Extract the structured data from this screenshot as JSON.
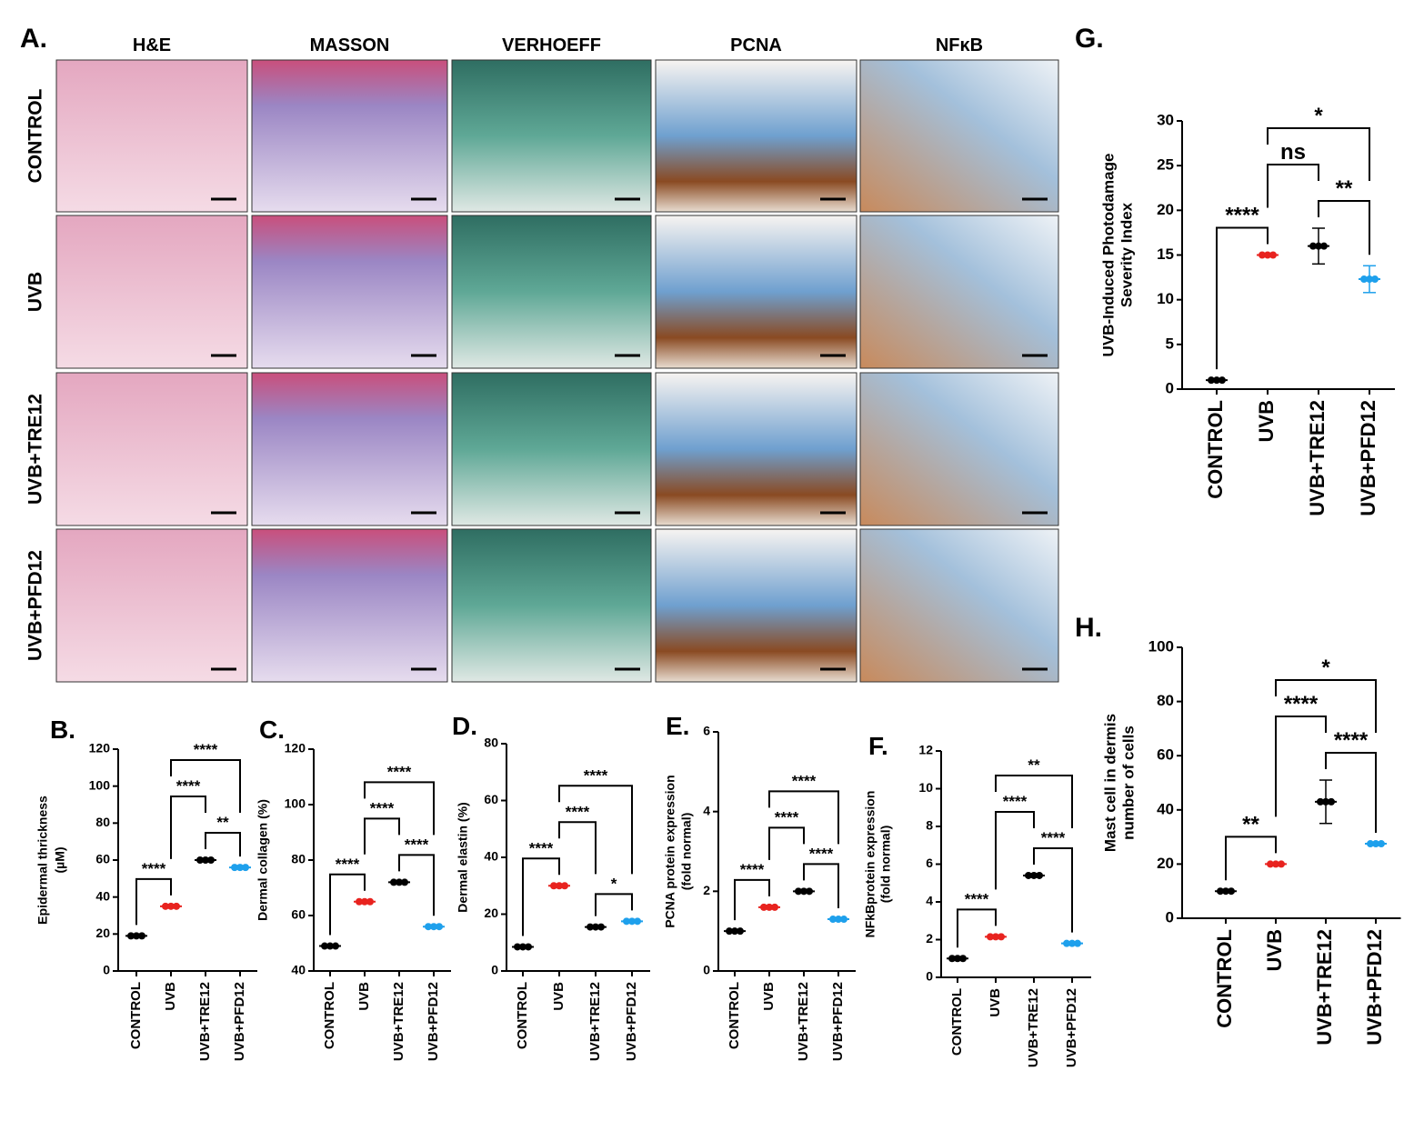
{
  "panel_a": {
    "label": "A.",
    "columns": [
      "H&E",
      "MASSON",
      "VERHOEFF",
      "PCNA",
      "NFκB"
    ],
    "rows": [
      "CONTROL",
      "UVB",
      "UVB+TRE12",
      "UVB+PFD12"
    ]
  },
  "chart_data": [
    {
      "type": "dot",
      "label": "B.",
      "ylabel": [
        "Epidermal thrickness",
        "(µM)"
      ],
      "categories": [
        "CONTROL",
        "UVB",
        "UVB+TRE12",
        "UVB+PFD12"
      ],
      "values": [
        19,
        35,
        60,
        56
      ],
      "colors": [
        "#000000",
        "#e8231f",
        "#000000",
        "#1ea0ec"
      ],
      "ylim": [
        0,
        120
      ],
      "yticks": [
        0,
        20,
        40,
        60,
        80,
        100,
        120
      ],
      "comparisons": [
        {
          "groups": [
            "CONTROL",
            "UVB"
          ],
          "label": "****"
        },
        {
          "groups": [
            "UVB+TRE12",
            "UVB+PFD12"
          ],
          "label": "**"
        },
        {
          "groups": [
            "UVB",
            "UVB+TRE12"
          ],
          "label": "****"
        },
        {
          "groups": [
            "UVB",
            "UVB+PFD12"
          ],
          "label": "****"
        }
      ]
    },
    {
      "type": "dot",
      "label": "C.",
      "ylabel": [
        "Dermal collagen  (%)"
      ],
      "categories": [
        "CONTROL",
        "UVB",
        "UVB+TRE12",
        "UVB+PFD12"
      ],
      "values": [
        49,
        65,
        72,
        56
      ],
      "colors": [
        "#000000",
        "#e8231f",
        "#000000",
        "#1ea0ec"
      ],
      "ylim": [
        40,
        120
      ],
      "yticks": [
        40,
        60,
        80,
        100,
        120
      ],
      "comparisons": [
        {
          "groups": [
            "CONTROL",
            "UVB"
          ],
          "label": "****"
        },
        {
          "groups": [
            "UVB+TRE12",
            "UVB+PFD12"
          ],
          "label": "****"
        },
        {
          "groups": [
            "UVB",
            "UVB+TRE12"
          ],
          "label": "****"
        },
        {
          "groups": [
            "UVB",
            "UVB+PFD12"
          ],
          "label": "****"
        }
      ]
    },
    {
      "type": "dot",
      "label": "D.",
      "ylabel": [
        "Dermal elastin  (%)"
      ],
      "categories": [
        "CONTROL",
        "UVB",
        "UVB+TRE12",
        "UVB+PFD12"
      ],
      "values": [
        8.5,
        30,
        15.5,
        17.5
      ],
      "colors": [
        "#000000",
        "#e8231f",
        "#000000",
        "#1ea0ec"
      ],
      "ylim": [
        0,
        80
      ],
      "yticks": [
        0,
        20,
        40,
        60,
        80
      ],
      "comparisons": [
        {
          "groups": [
            "CONTROL",
            "UVB"
          ],
          "label": "****"
        },
        {
          "groups": [
            "UVB+TRE12",
            "UVB+PFD12"
          ],
          "label": "*"
        },
        {
          "groups": [
            "UVB",
            "UVB+TRE12"
          ],
          "label": "****"
        },
        {
          "groups": [
            "UVB",
            "UVB+PFD12"
          ],
          "label": "****"
        }
      ]
    },
    {
      "type": "dot",
      "label": "E.",
      "ylabel": [
        "PCNA protein expression",
        "(fold normal)"
      ],
      "categories": [
        "CONTROL",
        "UVB",
        "UVB+TRE12",
        "UVB+PFD12"
      ],
      "values": [
        1.0,
        1.6,
        2.0,
        1.3
      ],
      "colors": [
        "#000000",
        "#e8231f",
        "#000000",
        "#1ea0ec"
      ],
      "ylim": [
        0,
        6
      ],
      "yticks": [
        0,
        2,
        4,
        6
      ],
      "comparisons": [
        {
          "groups": [
            "CONTROL",
            "UVB"
          ],
          "label": "****"
        },
        {
          "groups": [
            "UVB+TRE12",
            "UVB+PFD12"
          ],
          "label": "****"
        },
        {
          "groups": [
            "UVB",
            "UVB+TRE12"
          ],
          "label": "****"
        },
        {
          "groups": [
            "UVB",
            "UVB+PFD12"
          ],
          "label": "****"
        }
      ]
    },
    {
      "type": "dot",
      "label": "F.",
      "ylabel": [
        "NFkBprotein expression",
        "(fold normal)"
      ],
      "categories": [
        "CONTROL",
        "UVB",
        "UVB+TRE12",
        "UVB+PFD12"
      ],
      "values": [
        1.0,
        2.15,
        5.4,
        1.8
      ],
      "colors": [
        "#000000",
        "#e8231f",
        "#000000",
        "#1ea0ec"
      ],
      "ylim": [
        0,
        12
      ],
      "yticks": [
        0,
        2,
        4,
        6,
        8,
        10,
        12
      ],
      "comparisons": [
        {
          "groups": [
            "CONTROL",
            "UVB"
          ],
          "label": "****"
        },
        {
          "groups": [
            "UVB+TRE12",
            "UVB+PFD12"
          ],
          "label": "****"
        },
        {
          "groups": [
            "UVB",
            "UVB+TRE12"
          ],
          "label": "****"
        },
        {
          "groups": [
            "UVB",
            "UVB+PFD12"
          ],
          "label": "**"
        }
      ]
    },
    {
      "type": "dot",
      "label": "G.",
      "ylabel": [
        "UVB-Induced Photodamage",
        "Severity Index"
      ],
      "categories": [
        "CONTROL",
        "UVB",
        "UVB+TRE12",
        "UVB+PFD12"
      ],
      "values": [
        1,
        15,
        16,
        12.3
      ],
      "errors": [
        null,
        null,
        2,
        1.5
      ],
      "colors": [
        "#000000",
        "#e8231f",
        "#000000",
        "#1ea0ec"
      ],
      "ylim": [
        0,
        30
      ],
      "yticks": [
        0,
        5,
        10,
        15,
        20,
        25,
        30
      ],
      "comparisons": [
        {
          "groups": [
            "CONTROL",
            "UVB"
          ],
          "label": "****"
        },
        {
          "groups": [
            "UVB+TRE12",
            "UVB+PFD12"
          ],
          "label": "**"
        },
        {
          "groups": [
            "UVB",
            "UVB+TRE12"
          ],
          "label": "ns"
        },
        {
          "groups": [
            "UVB",
            "UVB+PFD12"
          ],
          "label": "*"
        }
      ]
    },
    {
      "type": "dot",
      "label": "H.",
      "ylabel": [
        "Mast cell in dermis",
        "number of cells"
      ],
      "categories": [
        "CONTROL",
        "UVB",
        "UVB+TRE12",
        "UVB+PFD12"
      ],
      "values": [
        10,
        20,
        43,
        27.5
      ],
      "errors": [
        null,
        null,
        8,
        null
      ],
      "colors": [
        "#000000",
        "#e8231f",
        "#000000",
        "#1ea0ec"
      ],
      "ylim": [
        0,
        100
      ],
      "yticks": [
        0,
        20,
        40,
        60,
        80,
        100
      ],
      "comparisons": [
        {
          "groups": [
            "CONTROL",
            "UVB"
          ],
          "label": "**"
        },
        {
          "groups": [
            "UVB+TRE12",
            "UVB+PFD12"
          ],
          "label": "****"
        },
        {
          "groups": [
            "UVB",
            "UVB+TRE12"
          ],
          "label": "****"
        },
        {
          "groups": [
            "UVB",
            "UVB+PFD12"
          ],
          "label": "*"
        }
      ]
    }
  ]
}
